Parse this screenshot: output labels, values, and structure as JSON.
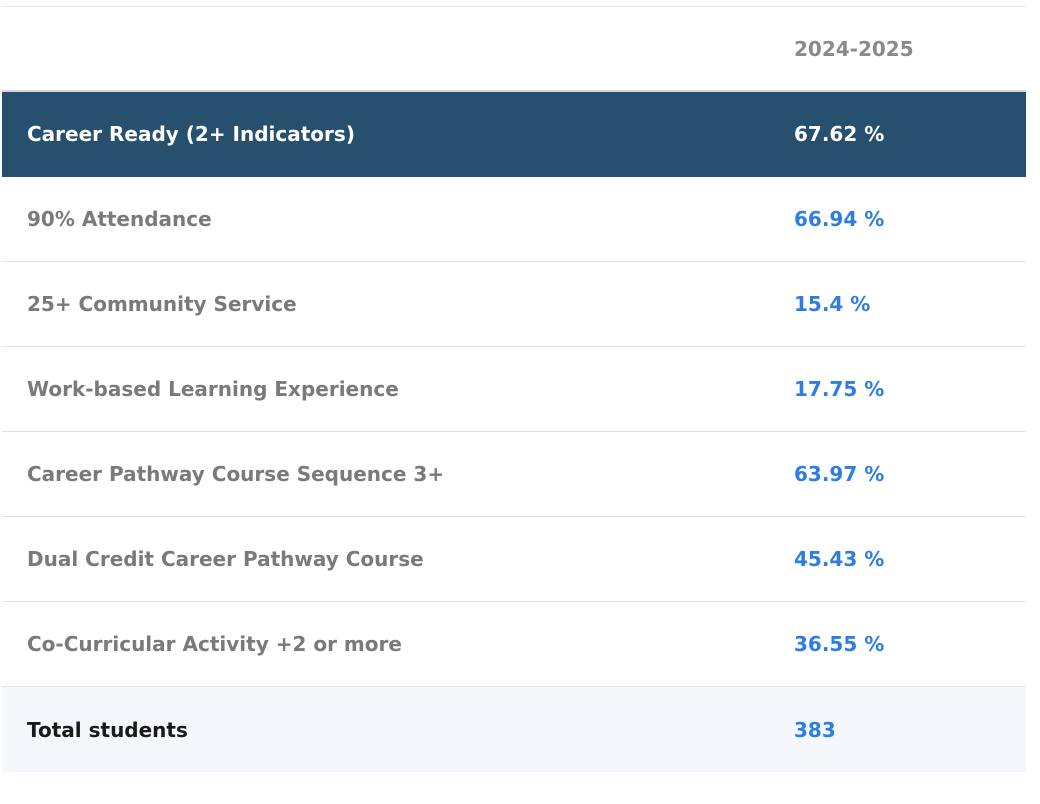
{
  "header": {
    "year": "2024-2025"
  },
  "highlight": {
    "label": "Career Ready (2+ Indicators)",
    "value": "67.62 %"
  },
  "rows": [
    {
      "label": "90% Attendance",
      "value": "66.94 %"
    },
    {
      "label": "25+ Community Service",
      "value": "15.4 %"
    },
    {
      "label": "Work-based Learning Experience",
      "value": "17.75 %"
    },
    {
      "label": "Career Pathway Course Sequence 3+",
      "value": "63.97 %"
    },
    {
      "label": "Dual Credit Career Pathway Course",
      "value": "45.43 %"
    },
    {
      "label": "Co-Curricular Activity +2 or more",
      "value": "36.55 %"
    }
  ],
  "total": {
    "label": "Total students",
    "value": "383"
  },
  "colors": {
    "highlight_bg": "#27506f",
    "link_blue": "#2f7de1",
    "muted_text": "#7a7a7a",
    "total_bg": "#f4f8fc"
  }
}
